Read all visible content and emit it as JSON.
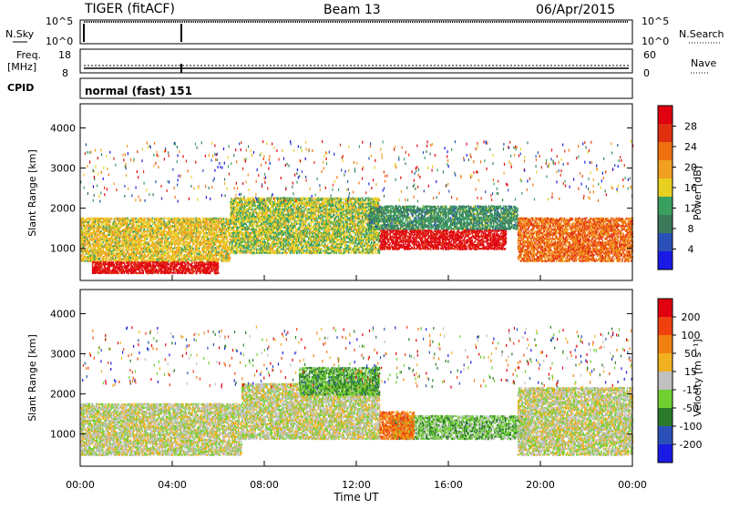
{
  "header": {
    "station": "TIGER (fitACF)",
    "beam": "Beam 13",
    "date": "06/Apr/2015"
  },
  "noise_panel": {
    "left_label": "N.Sky",
    "left_ticks": [
      "10^5",
      "10^0"
    ],
    "right_ticks": [
      "10^5",
      "10^0"
    ],
    "right_label": "N.Search"
  },
  "freq_panel": {
    "left_label_1": "Freq.",
    "left_label_2": "[MHz]",
    "left_ticks": [
      "18",
      "8"
    ],
    "right_ticks": [
      "60",
      "0"
    ],
    "right_label": "Nave"
  },
  "cpid_panel": {
    "label": "CPID",
    "text": "normal (fast) 151"
  },
  "x_axis": {
    "label": "Time UT",
    "ticks": [
      "00:00",
      "04:00",
      "08:00",
      "12:00",
      "16:00",
      "20:00",
      "00:00"
    ]
  },
  "power_panel": {
    "ylabel": "Slant Range [km]",
    "yticks": [
      "4000",
      "3000",
      "2000",
      "1000"
    ],
    "cbar_label": "Power [dB]",
    "cbar_ticks": [
      "28",
      "24",
      "20",
      "16",
      "12",
      "8",
      "4"
    ]
  },
  "velocity_panel": {
    "ylabel": "Slant Range [km]",
    "yticks": [
      "4000",
      "3000",
      "2000",
      "1000"
    ],
    "cbar_label": "Velocity [m s⁻¹]",
    "cbar_ticks": [
      "200",
      "100",
      "50",
      "15",
      "-15",
      "-50",
      "-100",
      "-200"
    ]
  },
  "colors": {
    "power_scale": [
      "#1a1ae6",
      "#2a50b8",
      "#3a7a5a",
      "#3aa060",
      "#e8d020",
      "#f0a020",
      "#f07010",
      "#e03010",
      "#e00010"
    ],
    "velocity_scale": [
      "#1a1ae6",
      "#2a50b8",
      "#2a7a2a",
      "#70d030",
      "#c0c0c0",
      "#f0b020",
      "#f08010",
      "#f04010",
      "#e00010"
    ]
  },
  "chart_data": {
    "type": "heatmap",
    "x": {
      "label": "Time UT",
      "range_hours": [
        0,
        24
      ]
    },
    "y": {
      "label": "Slant Range [km]",
      "range_km": [
        200,
        4600
      ]
    },
    "panels": [
      {
        "name": "Power",
        "units": "dB",
        "scale_range": [
          0,
          30
        ],
        "regions": [
          {
            "t0": 0.0,
            "t1": 6.5,
            "r0": 700,
            "r1": 1800,
            "level": 16
          },
          {
            "t0": 0.5,
            "t1": 6.0,
            "r0": 400,
            "r1": 700,
            "level": 28
          },
          {
            "t0": 6.5,
            "t1": 13.0,
            "r0": 900,
            "r1": 2300,
            "level": 14
          },
          {
            "t0": 13.0,
            "t1": 18.5,
            "r0": 1000,
            "r1": 1500,
            "level": 28
          },
          {
            "t0": 12.5,
            "t1": 19.0,
            "r0": 1500,
            "r1": 2100,
            "level": 10
          },
          {
            "t0": 19.0,
            "t1": 24.0,
            "r0": 700,
            "r1": 1800,
            "level": 22
          }
        ]
      },
      {
        "name": "Velocity",
        "units": "m s^-1",
        "scale_range": [
          -250,
          250
        ],
        "regions": [
          {
            "t0": 0.0,
            "t1": 7.0,
            "r0": 500,
            "r1": 1800,
            "level": 0
          },
          {
            "t0": 7.0,
            "t1": 13.0,
            "r0": 900,
            "r1": 2300,
            "level": 0
          },
          {
            "t0": 9.5,
            "t1": 13.0,
            "r0": 2000,
            "r1": 2700,
            "level": -80
          },
          {
            "t0": 13.5,
            "t1": 19.5,
            "r0": 900,
            "r1": 1500,
            "level": -60
          },
          {
            "t0": 13.0,
            "t1": 14.5,
            "r0": 900,
            "r1": 1600,
            "level": 120
          },
          {
            "t0": 19.0,
            "t1": 24.0,
            "r0": 500,
            "r1": 2200,
            "level": 0
          }
        ]
      }
    ]
  }
}
